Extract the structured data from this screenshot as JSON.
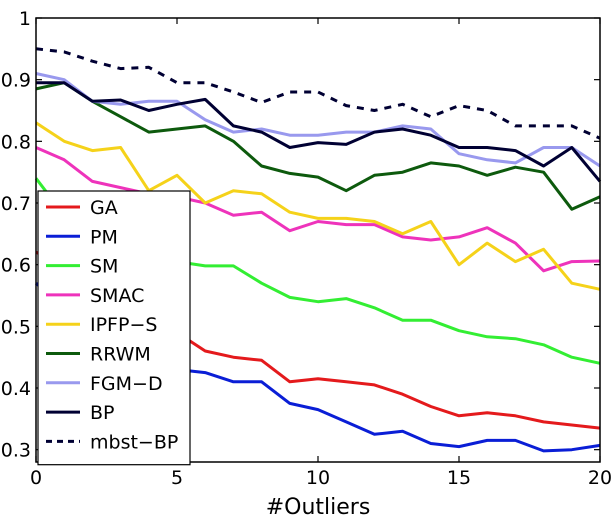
{
  "chart_data": {
    "type": "line",
    "xlabel": "#Outliers",
    "ylabel": "",
    "xlim": [
      0,
      20
    ],
    "ylim": [
      0.28,
      1.0
    ],
    "xticks": [
      0,
      5,
      10,
      15,
      20
    ],
    "xtick_labels": [
      "0",
      "5",
      "10",
      "15",
      "20"
    ],
    "yticks": [
      0.3,
      0.4,
      0.5,
      0.6,
      0.7,
      0.8,
      0.9,
      1.0
    ],
    "ytick_labels": [
      "0.3",
      "0.4",
      "0.5",
      "0.6",
      "0.7",
      "0.8",
      "0.9",
      "1"
    ],
    "grid": false,
    "legend_position": "left",
    "x": [
      0,
      1,
      2,
      3,
      4,
      5,
      6,
      7,
      8,
      9,
      10,
      11,
      12,
      13,
      14,
      15,
      16,
      17,
      18,
      19,
      20
    ],
    "series": [
      {
        "name": "GA",
        "color": "#e41a1c",
        "dash": "solid",
        "values": [
          0.62,
          0.6,
          0.57,
          0.55,
          0.52,
          0.49,
          0.46,
          0.45,
          0.445,
          0.41,
          0.415,
          0.41,
          0.405,
          0.39,
          0.37,
          0.355,
          0.36,
          0.355,
          0.345,
          0.34,
          0.335
        ]
      },
      {
        "name": "PM",
        "color": "#0a1ed6",
        "dash": "solid",
        "values": [
          0.57,
          0.53,
          0.49,
          0.46,
          0.44,
          0.43,
          0.425,
          0.41,
          0.41,
          0.375,
          0.365,
          0.345,
          0.325,
          0.33,
          0.31,
          0.305,
          0.315,
          0.315,
          0.298,
          0.3,
          0.307
        ]
      },
      {
        "name": "SM",
        "color": "#33ee33",
        "dash": "solid",
        "values": [
          0.74,
          0.68,
          0.65,
          0.63,
          0.615,
          0.605,
          0.598,
          0.598,
          0.57,
          0.547,
          0.54,
          0.545,
          0.53,
          0.51,
          0.51,
          0.493,
          0.483,
          0.48,
          0.47,
          0.45,
          0.44
        ]
      },
      {
        "name": "SMAC",
        "color": "#ee33bb",
        "dash": "solid",
        "values": [
          0.79,
          0.77,
          0.735,
          0.725,
          0.715,
          0.71,
          0.7,
          0.68,
          0.685,
          0.655,
          0.67,
          0.665,
          0.665,
          0.645,
          0.64,
          0.645,
          0.66,
          0.635,
          0.59,
          0.605,
          0.606
        ]
      },
      {
        "name": "IPFP−S",
        "color": "#f5d21a",
        "dash": "solid",
        "values": [
          0.83,
          0.8,
          0.785,
          0.79,
          0.72,
          0.745,
          0.7,
          0.72,
          0.715,
          0.685,
          0.675,
          0.675,
          0.67,
          0.65,
          0.67,
          0.6,
          0.635,
          0.605,
          0.625,
          0.57,
          0.56
        ]
      },
      {
        "name": "RRWM",
        "color": "#0d5a0d",
        "dash": "solid",
        "values": [
          0.885,
          0.895,
          0.865,
          0.84,
          0.815,
          0.82,
          0.825,
          0.8,
          0.76,
          0.748,
          0.742,
          0.72,
          0.745,
          0.75,
          0.765,
          0.76,
          0.745,
          0.758,
          0.75,
          0.69,
          0.71
        ]
      },
      {
        "name": "FGM−D",
        "color": "#9999ee",
        "dash": "solid",
        "values": [
          0.91,
          0.9,
          0.865,
          0.86,
          0.865,
          0.865,
          0.835,
          0.815,
          0.82,
          0.81,
          0.81,
          0.815,
          0.815,
          0.825,
          0.82,
          0.78,
          0.77,
          0.765,
          0.79,
          0.79,
          0.76
        ]
      },
      {
        "name": "BP",
        "color": "#000033",
        "dash": "solid",
        "values": [
          0.895,
          0.895,
          0.865,
          0.867,
          0.85,
          0.86,
          0.868,
          0.825,
          0.815,
          0.79,
          0.798,
          0.795,
          0.815,
          0.82,
          0.81,
          0.79,
          0.79,
          0.785,
          0.76,
          0.79,
          0.735
        ]
      },
      {
        "name": "mbst−BP",
        "color": "#000033",
        "dash": "dashed",
        "values": [
          0.95,
          0.945,
          0.93,
          0.918,
          0.92,
          0.895,
          0.895,
          0.88,
          0.863,
          0.88,
          0.88,
          0.858,
          0.85,
          0.86,
          0.84,
          0.858,
          0.85,
          0.825,
          0.825,
          0.825,
          0.805
        ]
      }
    ]
  }
}
